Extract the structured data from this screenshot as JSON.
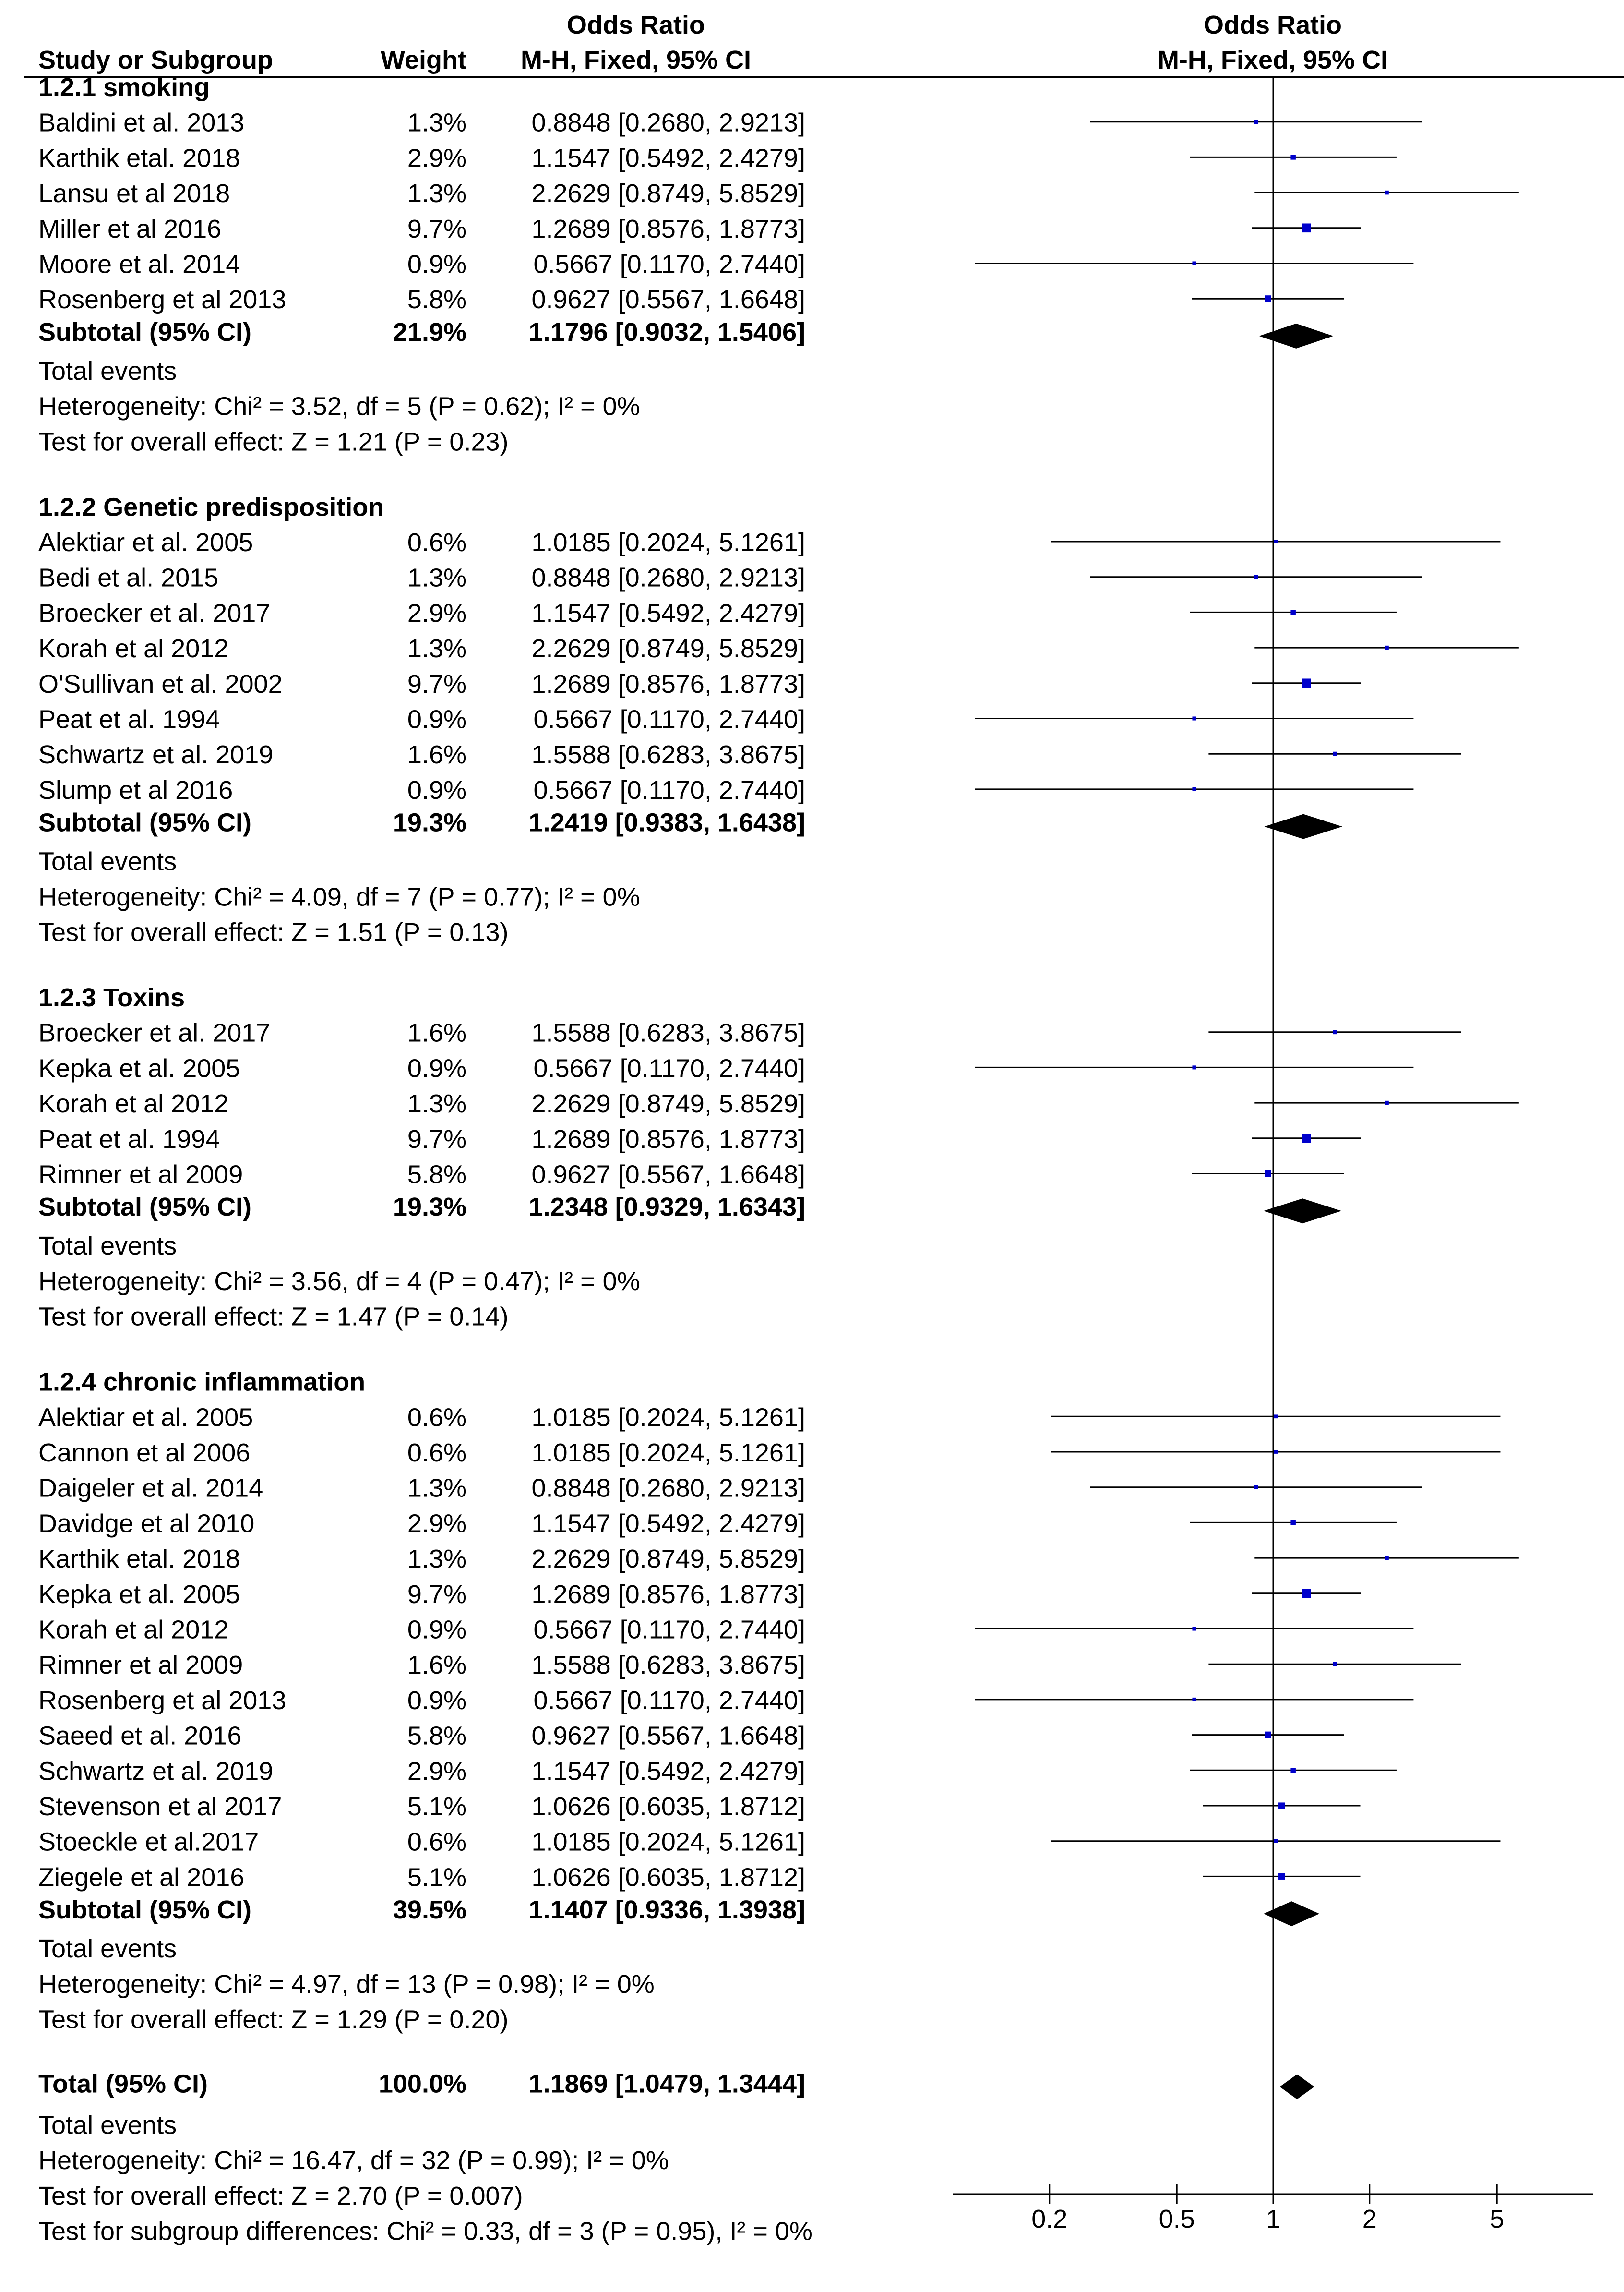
{
  "chart_data": {
    "type": "forest",
    "headers": {
      "study_col": "Study or Subgroup",
      "weight_col": "Weight",
      "or_col_line1": "Odds Ratio",
      "or_col_line2": "M-H, Fixed, 95% CI",
      "plot_line1": "Odds Ratio",
      "plot_line2": "M-H, Fixed, 95% CI"
    },
    "x_axis": {
      "scale": "log",
      "range": [
        0.1,
        10
      ],
      "ticks": [
        0.2,
        0.5,
        1,
        2,
        5
      ],
      "tick_labels": [
        "0.2",
        "0.5",
        "1",
        "2",
        "5"
      ],
      "reference_line": 1
    },
    "subgroups": [
      {
        "title": "1.2.1 smoking",
        "studies": [
          {
            "name": "Baldini et al. 2013",
            "weight": "1.3%",
            "ci_text": "0.8848 [0.2680, 2.9213]",
            "or": 0.8848,
            "lo": 0.268,
            "hi": 2.9213
          },
          {
            "name": "Karthik etal. 2018",
            "weight": "2.9%",
            "ci_text": "1.1547 [0.5492, 2.4279]",
            "or": 1.1547,
            "lo": 0.5492,
            "hi": 2.4279
          },
          {
            "name": "Lansu et al 2018",
            "weight": "1.3%",
            "ci_text": "2.2629 [0.8749, 5.8529]",
            "or": 2.2629,
            "lo": 0.8749,
            "hi": 5.8529
          },
          {
            "name": "Miller et al 2016",
            "weight": "9.7%",
            "ci_text": "1.2689 [0.8576, 1.8773]",
            "or": 1.2689,
            "lo": 0.8576,
            "hi": 1.8773
          },
          {
            "name": "Moore et al. 2014",
            "weight": "0.9%",
            "ci_text": "0.5667 [0.1170, 2.7440]",
            "or": 0.5667,
            "lo": 0.117,
            "hi": 2.744
          },
          {
            "name": "Rosenberg et al 2013",
            "weight": "5.8%",
            "ci_text": "0.9627 [0.5567, 1.6648]",
            "or": 0.9627,
            "lo": 0.5567,
            "hi": 1.6648
          }
        ],
        "subtotal": {
          "label": "Subtotal (95% CI)",
          "weight": "21.9%",
          "ci_text": "1.1796 [0.9032, 1.5406]",
          "or": 1.1796,
          "lo": 0.9032,
          "hi": 1.5406
        },
        "total_events": "Total events",
        "heterogeneity": "Heterogeneity: Chi² = 3.52, df = 5 (P = 0.62); I² = 0%",
        "overall_effect": "Test for overall effect: Z = 1.21 (P = 0.23)"
      },
      {
        "title": "1.2.2 Genetic predisposition",
        "studies": [
          {
            "name": "Alektiar et al. 2005",
            "weight": "0.6%",
            "ci_text": "1.0185 [0.2024, 5.1261]",
            "or": 1.0185,
            "lo": 0.2024,
            "hi": 5.1261
          },
          {
            "name": "Bedi et al. 2015",
            "weight": "1.3%",
            "ci_text": "0.8848 [0.2680, 2.9213]",
            "or": 0.8848,
            "lo": 0.268,
            "hi": 2.9213
          },
          {
            "name": "Broecker et al. 2017",
            "weight": "2.9%",
            "ci_text": "1.1547 [0.5492, 2.4279]",
            "or": 1.1547,
            "lo": 0.5492,
            "hi": 2.4279
          },
          {
            "name": "Korah et al 2012",
            "weight": "1.3%",
            "ci_text": "2.2629 [0.8749, 5.8529]",
            "or": 2.2629,
            "lo": 0.8749,
            "hi": 5.8529
          },
          {
            "name": "O'Sullivan et al. 2002",
            "weight": "9.7%",
            "ci_text": "1.2689 [0.8576, 1.8773]",
            "or": 1.2689,
            "lo": 0.8576,
            "hi": 1.8773
          },
          {
            "name": "Peat  et al. 1994",
            "weight": "0.9%",
            "ci_text": "0.5667 [0.1170, 2.7440]",
            "or": 0.5667,
            "lo": 0.117,
            "hi": 2.744
          },
          {
            "name": "Schwartz et al. 2019",
            "weight": "1.6%",
            "ci_text": "1.5588 [0.6283, 3.8675]",
            "or": 1.5588,
            "lo": 0.6283,
            "hi": 3.8675
          },
          {
            "name": "Slump et al 2016",
            "weight": "0.9%",
            "ci_text": "0.5667 [0.1170, 2.7440]",
            "or": 0.5667,
            "lo": 0.117,
            "hi": 2.744
          }
        ],
        "subtotal": {
          "label": "Subtotal (95% CI)",
          "weight": "19.3%",
          "ci_text": "1.2419 [0.9383, 1.6438]",
          "or": 1.2419,
          "lo": 0.9383,
          "hi": 1.6438
        },
        "total_events": "Total events",
        "heterogeneity": "Heterogeneity: Chi² = 4.09, df = 7 (P = 0.77); I² = 0%",
        "overall_effect": "Test for overall effect: Z = 1.51 (P = 0.13)"
      },
      {
        "title": "1.2.3 Toxins",
        "studies": [
          {
            "name": "Broecker et al. 2017",
            "weight": "1.6%",
            "ci_text": "1.5588 [0.6283, 3.8675]",
            "or": 1.5588,
            "lo": 0.6283,
            "hi": 3.8675
          },
          {
            "name": "Kepka et al. 2005",
            "weight": "0.9%",
            "ci_text": "0.5667 [0.1170, 2.7440]",
            "or": 0.5667,
            "lo": 0.117,
            "hi": 2.744
          },
          {
            "name": "Korah et al 2012",
            "weight": "1.3%",
            "ci_text": "2.2629 [0.8749, 5.8529]",
            "or": 2.2629,
            "lo": 0.8749,
            "hi": 5.8529
          },
          {
            "name": "Peat  et al. 1994",
            "weight": "9.7%",
            "ci_text": "1.2689 [0.8576, 1.8773]",
            "or": 1.2689,
            "lo": 0.8576,
            "hi": 1.8773
          },
          {
            "name": "Rimner et al 2009",
            "weight": "5.8%",
            "ci_text": "0.9627 [0.5567, 1.6648]",
            "or": 0.9627,
            "lo": 0.5567,
            "hi": 1.6648
          }
        ],
        "subtotal": {
          "label": "Subtotal (95% CI)",
          "weight": "19.3%",
          "ci_text": "1.2348 [0.9329, 1.6343]",
          "or": 1.2348,
          "lo": 0.9329,
          "hi": 1.6343
        },
        "total_events": "Total events",
        "heterogeneity": "Heterogeneity: Chi² = 3.56, df = 4 (P = 0.47); I² = 0%",
        "overall_effect": "Test for overall effect: Z = 1.47 (P = 0.14)"
      },
      {
        "title": "1.2.4 chronic inflammation",
        "studies": [
          {
            "name": "Alektiar et al. 2005",
            "weight": "0.6%",
            "ci_text": "1.0185 [0.2024, 5.1261]",
            "or": 1.0185,
            "lo": 0.2024,
            "hi": 5.1261
          },
          {
            "name": "Cannon et al 2006",
            "weight": "0.6%",
            "ci_text": "1.0185 [0.2024, 5.1261]",
            "or": 1.0185,
            "lo": 0.2024,
            "hi": 5.1261
          },
          {
            "name": "Daigeler et al. 2014",
            "weight": "1.3%",
            "ci_text": "0.8848 [0.2680, 2.9213]",
            "or": 0.8848,
            "lo": 0.268,
            "hi": 2.9213
          },
          {
            "name": "Davidge et al 2010",
            "weight": "2.9%",
            "ci_text": "1.1547 [0.5492, 2.4279]",
            "or": 1.1547,
            "lo": 0.5492,
            "hi": 2.4279
          },
          {
            "name": "Karthik etal. 2018",
            "weight": "1.3%",
            "ci_text": "2.2629 [0.8749, 5.8529]",
            "or": 2.2629,
            "lo": 0.8749,
            "hi": 5.8529
          },
          {
            "name": "Kepka et al. 2005",
            "weight": "9.7%",
            "ci_text": "1.2689 [0.8576, 1.8773]",
            "or": 1.2689,
            "lo": 0.8576,
            "hi": 1.8773
          },
          {
            "name": "Korah et al 2012",
            "weight": "0.9%",
            "ci_text": "0.5667 [0.1170, 2.7440]",
            "or": 0.5667,
            "lo": 0.117,
            "hi": 2.744
          },
          {
            "name": "Rimner et al 2009",
            "weight": "1.6%",
            "ci_text": "1.5588 [0.6283, 3.8675]",
            "or": 1.5588,
            "lo": 0.6283,
            "hi": 3.8675
          },
          {
            "name": "Rosenberg et al 2013",
            "weight": "0.9%",
            "ci_text": "0.5667 [0.1170, 2.7440]",
            "or": 0.5667,
            "lo": 0.117,
            "hi": 2.744
          },
          {
            "name": "Saeed et al. 2016",
            "weight": "5.8%",
            "ci_text": "0.9627 [0.5567, 1.6648]",
            "or": 0.9627,
            "lo": 0.5567,
            "hi": 1.6648
          },
          {
            "name": "Schwartz et al. 2019",
            "weight": "2.9%",
            "ci_text": "1.1547 [0.5492, 2.4279]",
            "or": 1.1547,
            "lo": 0.5492,
            "hi": 2.4279
          },
          {
            "name": "Stevenson et al 2017",
            "weight": "5.1%",
            "ci_text": "1.0626 [0.6035, 1.8712]",
            "or": 1.0626,
            "lo": 0.6035,
            "hi": 1.8712
          },
          {
            "name": "Stoeckle et al.2017",
            "weight": "0.6%",
            "ci_text": "1.0185 [0.2024, 5.1261]",
            "or": 1.0185,
            "lo": 0.2024,
            "hi": 5.1261
          },
          {
            "name": "Ziegele et al 2016",
            "weight": "5.1%",
            "ci_text": "1.0626 [0.6035, 1.8712]",
            "or": 1.0626,
            "lo": 0.6035,
            "hi": 1.8712
          }
        ],
        "subtotal": {
          "label": "Subtotal (95% CI)",
          "weight": "39.5%",
          "ci_text": "1.1407 [0.9336, 1.3938]",
          "or": 1.1407,
          "lo": 0.9336,
          "hi": 1.3938
        },
        "total_events": "Total events",
        "heterogeneity": "Heterogeneity: Chi² = 4.97, df = 13 (P = 0.98); I² = 0%",
        "overall_effect": "Test for overall effect: Z = 1.29 (P = 0.20)"
      }
    ],
    "total": {
      "label": "Total (95% CI)",
      "weight": "100.0%",
      "ci_text": "1.1869 [1.0479, 1.3444]",
      "or": 1.1869,
      "lo": 1.0479,
      "hi": 1.3444,
      "total_events": "Total events",
      "heterogeneity": "Heterogeneity: Chi² = 16.47, df = 32 (P = 0.99); I² = 0%",
      "overall_effect": "Test for overall effect: Z = 2.70 (P = 0.007)",
      "subgroup_diff": "Test for subgroup differences: Chi² = 0.33, df = 3 (P = 0.95), I² = 0%"
    }
  }
}
